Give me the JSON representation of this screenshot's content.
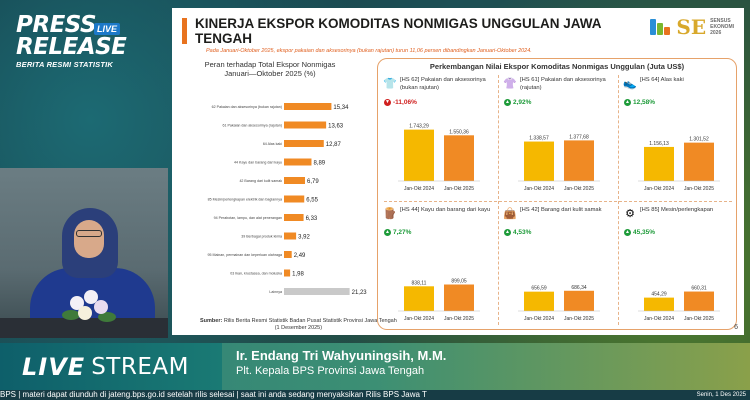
{
  "broadcast": {
    "logo_press": "PRESS",
    "logo_release": "RELEASE",
    "logo_live": "LIVE",
    "logo_sub": "BERITA RESMI STATISTIK",
    "live_label": "LIVE",
    "stream_label": "STREAM",
    "speaker_name": "Ir. Endang Tri Wahyuningsih, M.M.",
    "speaker_role": "Plt. Kepala BPS Provinsi Jawa Tengah",
    "ticker_text": "BPS | materi dapat diunduh di jateng.bps.go.id setelah rilis selesai  |  saat ini anda sedang menyaksikan Rilis BPS Jawa T",
    "ticker_date": "Senin, 1 Des 2025"
  },
  "slide": {
    "title": "KINERJA EKSPOR KOMODITAS NONMIGAS UNGGULAN JAWA TENGAH",
    "note": "Pada Januari-Oktober 2025, ekspor pakaian dan aksesorinya (bukan rajutan) turun 11,06 persen dibandingkan Januari-Oktober 2024.",
    "sensus_line1": "SENSUS",
    "sensus_line2": "EKONOMI",
    "sensus_line3": "2026",
    "page_number": "6",
    "source_label": "Sumber:",
    "source_text": "Rilis Berita Resmi Statistik Badan Pusat Statistik Provinsi Jawa Tengah",
    "source_date": "(1 Desember 2025)",
    "left_chart_title": "Peran terhadap Total Ekspor Nonmigas Januari—Oktober 2025 (%)",
    "right_panel_title": "Perkembangan Nilai Ekspor Komoditas Nonmigas Unggulan (Juta US$)",
    "colors": {
      "accent": "#e8731f",
      "bar_orange": "#f08a24",
      "bar_yellow": "#f5b800",
      "bar_gray": "#c9c9c9",
      "up": "#1e9b3a",
      "down": "#d0201f"
    }
  },
  "chart_data": [
    {
      "type": "bar",
      "orientation": "horizontal",
      "title": "Peran terhadap Total Ekspor Nonmigas Januari—Oktober 2025 (%)",
      "categories": [
        "62 Pakaian dan aksesorinya (bukan rajutan)",
        "61 Pakaian dan aksesorinya (rajutan)",
        "64 Alas kaki",
        "44 Kayu dan barang dari kayu",
        "42 Barang dari kulit samak",
        "85 Mesin/perlengkapan elektrik dan bagiannya",
        "94 Perabotan, lampu, dan alat penerangan",
        "39 Berbagai produk kimia",
        "95 Mainan, permainan dan keperluan olahraga",
        "03 Ikan, krustasea, dan moluska",
        "Lainnya"
      ],
      "values": [
        15.34,
        13.63,
        12.87,
        8.89,
        6.79,
        6.55,
        6.33,
        3.92,
        2.49,
        1.98,
        21.23
      ],
      "value_labels": [
        "15,34",
        "13,63",
        "12,87",
        "8,89",
        "6,79",
        "6,55",
        "6,33",
        "3,92",
        "2,49",
        "1,98",
        "21,23"
      ],
      "xlim": [
        0,
        22
      ]
    },
    {
      "type": "bar",
      "cards": [
        {
          "title": "[HS 62] Pakaian dan aksesorinya (bukan rajutan)",
          "icon": "shirt-icon",
          "icon_glyph": "👕",
          "change": "-11,06%",
          "direction": "down",
          "categories": [
            "Jan-Okt 2024",
            "Jan-Okt 2025"
          ],
          "values": [
            1743.29,
            1550.36
          ],
          "value_labels": [
            "1.743,29",
            "1.550,36"
          ]
        },
        {
          "title": "[HS 61] Pakaian dan aksesorinya (rajutan)",
          "icon": "clothes-icon",
          "icon_glyph": "👚",
          "change": "2,92%",
          "direction": "up",
          "categories": [
            "Jan-Okt 2024",
            "Jan-Okt 2025"
          ],
          "values": [
            1338.57,
            1377.68
          ],
          "value_labels": [
            "1.338,57",
            "1.377,68"
          ]
        },
        {
          "title": "[HS 64] Alas kaki",
          "icon": "shoe-icon",
          "icon_glyph": "👟",
          "change": "12,58%",
          "direction": "up",
          "categories": [
            "Jan-Okt 2024",
            "Jan-Okt 2025"
          ],
          "values": [
            1156.13,
            1301.52
          ],
          "value_labels": [
            "1.156,13",
            "1.301,52"
          ]
        },
        {
          "title": "[HS 44] Kayu dan barang dari kayu",
          "icon": "wood-icon",
          "icon_glyph": "🪵",
          "change": "7,27%",
          "direction": "up",
          "categories": [
            "Jan-Okt 2024",
            "Jan-Okt 2025"
          ],
          "values": [
            838.11,
            899.05
          ],
          "value_labels": [
            "838,11",
            "899,05"
          ]
        },
        {
          "title": "[HS 42] Barang dari kulit samak",
          "icon": "leather-icon",
          "icon_glyph": "👜",
          "change": "4,53%",
          "direction": "up",
          "categories": [
            "Jan-Okt 2024",
            "Jan-Okt 2025"
          ],
          "values": [
            656.59,
            686.34
          ],
          "value_labels": [
            "656,59",
            "686,34"
          ]
        },
        {
          "title": "[HS 85] Mesin/perlengkapan",
          "icon": "machine-icon",
          "icon_glyph": "⚙",
          "change": "45,35%",
          "direction": "up",
          "categories": [
            "Jan-Okt 2024",
            "Jan-Okt 2025"
          ],
          "values": [
            454.29,
            660.31
          ],
          "value_labels": [
            "454,29",
            "660,31"
          ]
        }
      ],
      "ylim": [
        0,
        1900
      ]
    }
  ]
}
